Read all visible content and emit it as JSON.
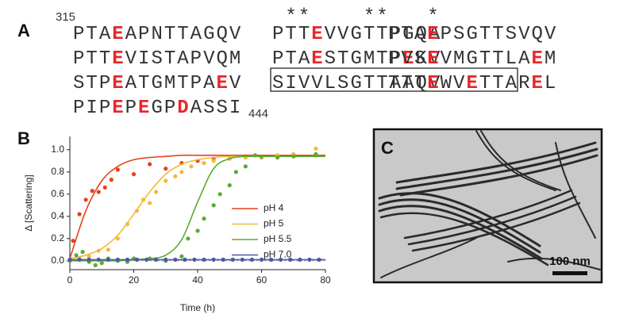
{
  "panel_a": {
    "label": "A",
    "start": "315",
    "end": "444",
    "highlight_letters": [
      "E",
      "D"
    ],
    "highlight_color": "#e8262a",
    "rows": [
      [
        {
          "seq": "PTAEAPNTTAGQV"
        },
        {
          "seq": "PTTEVVGTTPGQA",
          "marks": " **    **"
        },
        {
          "seq": "PTAEPSGTTSVQV",
          "marks": "   *"
        }
      ],
      [
        {
          "seq": "PTTEVISTAPVQM"
        },
        {
          "seq": "PTAESTGMTPEKV"
        },
        {
          "seq": "PVSEVMGTTLAEM"
        }
      ],
      [
        {
          "seq": "STPEATGMTPAEV"
        },
        {
          "seq": "SIVVLSGTTAAQV"
        },
        {
          "seq": "TTTEWVETTAREL"
        }
      ],
      [
        {
          "seq": "PIPEPEGPDASSI"
        }
      ]
    ]
  },
  "chart_data": {
    "type": "scatter",
    "label": "B",
    "x_label": "Time (h)",
    "y_label": "Δ [Scattering]",
    "xlim": [
      0,
      80
    ],
    "ylim": [
      -0.08,
      1.12
    ],
    "xticks": [
      0,
      20,
      40,
      60,
      80
    ],
    "yticks": [
      {
        "value": 0,
        "label": "0.0"
      },
      {
        "value": 0.2,
        "label": "0.2"
      },
      {
        "value": 0.4,
        "label": "0.4"
      },
      {
        "value": 0.6,
        "label": "0.6"
      },
      {
        "value": 0.8,
        "label": "0.8"
      },
      {
        "value": 1,
        "label": "1.0"
      }
    ],
    "fit_x": [
      0,
      5,
      10,
      15,
      20,
      25,
      30,
      35,
      40,
      45,
      50,
      55,
      60,
      65,
      70,
      75,
      80
    ],
    "series": [
      {
        "name": "pH 4",
        "color": "#e8401c",
        "x": [
          1,
          3,
          5,
          7,
          9,
          11,
          13,
          15,
          20,
          25,
          30,
          35,
          40,
          45,
          50,
          55,
          60,
          65,
          70,
          77
        ],
        "values": [
          0.18,
          0.42,
          0.55,
          0.63,
          0.62,
          0.66,
          0.73,
          0.82,
          0.78,
          0.87,
          0.83,
          0.88,
          0.9,
          0.92,
          0.92,
          0.94,
          0.93,
          0.95,
          0.95,
          0.95
        ],
        "fit": [
          0.02,
          0.45,
          0.72,
          0.85,
          0.91,
          0.93,
          0.94,
          0.95,
          0.95,
          0.95,
          0.95,
          0.95,
          0.95,
          0.95,
          0.95,
          0.95,
          0.95
        ]
      },
      {
        "name": "pH 5",
        "color": "#f5b93a",
        "x": [
          0,
          3,
          6,
          9,
          12,
          15,
          18,
          21,
          23,
          25,
          27,
          30,
          33,
          35,
          38,
          42,
          45,
          50,
          55,
          60,
          65,
          70,
          77
        ],
        "values": [
          0,
          0.02,
          0.04,
          0.09,
          0.1,
          0.2,
          0.33,
          0.45,
          0.55,
          0.52,
          0.62,
          0.72,
          0.76,
          0.8,
          0.85,
          0.88,
          0.9,
          0.92,
          0.93,
          0.93,
          0.95,
          0.96,
          1.01
        ],
        "fit": [
          0.02,
          0.05,
          0.11,
          0.23,
          0.42,
          0.62,
          0.78,
          0.87,
          0.91,
          0.93,
          0.94,
          0.94,
          0.94,
          0.94,
          0.94,
          0.94,
          0.94
        ]
      },
      {
        "name": "pH 5.5",
        "color": "#5aab32",
        "x": [
          0,
          2,
          4,
          6,
          8,
          10,
          12,
          15,
          18,
          20,
          25,
          30,
          35,
          37,
          40,
          42,
          45,
          47,
          50,
          52,
          55,
          58,
          60,
          65,
          70,
          77
        ],
        "values": [
          0,
          0.05,
          0.08,
          -0.01,
          -0.04,
          -0.02,
          0.02,
          0,
          -0.01,
          0.02,
          0.02,
          0,
          0.04,
          0.2,
          0.27,
          0.38,
          0.5,
          0.6,
          0.68,
          0.8,
          0.85,
          0.95,
          0.94,
          0.93,
          0.94,
          0.96
        ],
        "fit": [
          0,
          0,
          0,
          0,
          0.01,
          0.02,
          0.05,
          0.19,
          0.53,
          0.83,
          0.92,
          0.94,
          0.94,
          0.94,
          0.94,
          0.94,
          0.94
        ]
      },
      {
        "name": "pH 7.0",
        "color": "#4e57a8",
        "x": [
          0,
          3,
          6,
          9,
          12,
          15,
          18,
          21,
          24,
          27,
          30,
          33,
          36,
          39,
          42,
          45,
          48,
          51,
          54,
          57,
          60,
          63,
          66,
          69,
          72,
          75,
          78
        ],
        "values": [
          0.01,
          0.01,
          0.01,
          0.01,
          0.01,
          0.01,
          0.01,
          0.01,
          0.01,
          0.01,
          0.01,
          0.01,
          0.01,
          0.01,
          0.01,
          0.01,
          0.01,
          0.01,
          0.01,
          0.01,
          0.01,
          0.01,
          0.01,
          0.01,
          0.01,
          0.01,
          0.01
        ],
        "fit": [
          0.01,
          0.01,
          0.01,
          0.01,
          0.01,
          0.01,
          0.01,
          0.01,
          0.01,
          0.01,
          0.01,
          0.01,
          0.01,
          0.01,
          0.01,
          0.01,
          0.01
        ]
      }
    ]
  },
  "panel_c": {
    "label": "C",
    "scale_bar": "100 nm"
  }
}
